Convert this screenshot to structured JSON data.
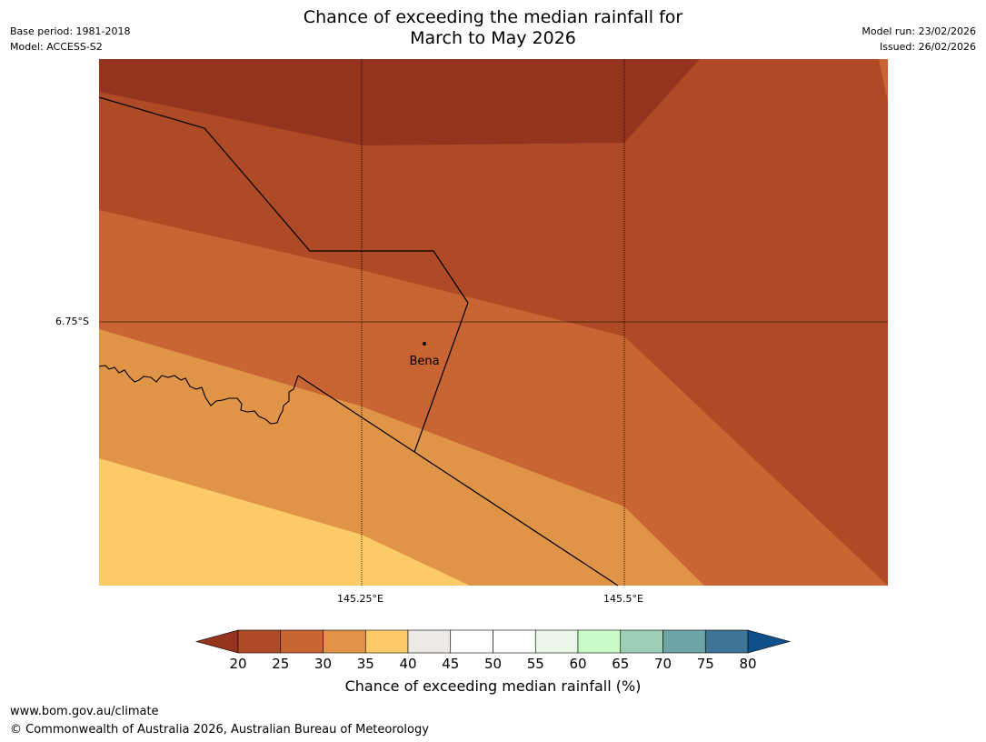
{
  "header": {
    "title_line1": "Chance of exceeding the median rainfall for",
    "title_line2": "March to May 2026",
    "base_period": "Base period: 1981-2018",
    "model": "Model: ACCESS-S2",
    "model_run": "Model run: 23/02/2026",
    "issued": "Issued: 26/02/2026"
  },
  "map": {
    "lat_label": "6.75°S",
    "lon_labels": [
      "145.25°E",
      "145.5°E"
    ],
    "place": "Bena",
    "colors": {
      "c20": "#95341e",
      "c25": "#ae4a25",
      "c30": "#c96532",
      "c35": "#e09447",
      "c40": "#fdca68",
      "boundary": "#000000",
      "grid": "#000000"
    }
  },
  "colorbar": {
    "ticks": [
      "20",
      "25",
      "30",
      "35",
      "40",
      "45",
      "50",
      "55",
      "60",
      "65",
      "70",
      "75",
      "80"
    ],
    "colors": [
      "#95341e",
      "#ae4a25",
      "#c96532",
      "#e09447",
      "#fdca68",
      "#ede9e4",
      "#ffffff",
      "#ffffff",
      "#eaf7e8",
      "#c7fcc6",
      "#9dcfb7",
      "#6fa4a6",
      "#3e7597",
      "#0f4f8a"
    ],
    "label": "Chance of exceeding median rainfall (%)"
  },
  "footer": {
    "url": "www.bom.gov.au/climate",
    "copyright": "© Commonwealth of Australia 2026, Australian Bureau of Meteorology"
  }
}
